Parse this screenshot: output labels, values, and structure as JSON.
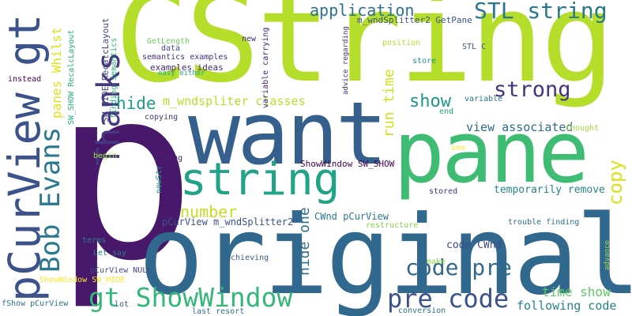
{
  "words": [
    {
      "text": "CString",
      "color": "#b5de2b"
    },
    {
      "text": "p",
      "color": "#48186a"
    },
    {
      "text": "original",
      "color": "#31688e"
    },
    {
      "text": "want",
      "color": "#35608d"
    },
    {
      "text": "pane",
      "color": "#3fbc73"
    },
    {
      "text": "string",
      "color": "#20a386"
    },
    {
      "text": "pCurView gt",
      "color": "#3b528b"
    },
    {
      "text": "Bob Evans",
      "color": "#2a788e"
    },
    {
      "text": "Thanks",
      "color": "#453781"
    },
    {
      "text": "gt ShowWindow",
      "color": "#35b779"
    },
    {
      "text": "pre code",
      "color": "#3b528b"
    },
    {
      "text": "code pre",
      "color": "#31688e"
    },
    {
      "text": "STL string",
      "color": "#2a788e"
    },
    {
      "text": "application",
      "color": "#2d708e"
    },
    {
      "text": "strong",
      "color": "#46337f"
    },
    {
      "text": "copy",
      "color": "#d8e219"
    },
    {
      "text": "show",
      "color": "#1f968b"
    },
    {
      "text": "hide",
      "color": "#1e9c89"
    },
    {
      "text": "number",
      "color": "#c2df23"
    },
    {
      "text": "m_wndspliter classes",
      "color": "#b8de29"
    },
    {
      "text": "run time",
      "color": "#d0e11c"
    },
    {
      "text": "hide one",
      "color": "#2e6f8e"
    },
    {
      "text": "time show",
      "color": "#5ec962"
    },
    {
      "text": "following code",
      "color": "#26828e"
    },
    {
      "text": "view associated",
      "color": "#31688e"
    },
    {
      "text": "temporarily remove",
      "color": "#25848e"
    },
    {
      "text": "panes Whilst",
      "color": "#dde318"
    },
    {
      "text": "pCurView m_wndSplitter2",
      "color": "#3b528b"
    },
    {
      "text": "m_wndSplitter2 GetPane",
      "color": "#3b528b"
    },
    {
      "text": "ShowWindow SW_SHOW",
      "color": "#440154"
    },
    {
      "text": "CWnd pCurView",
      "color": "#2a788e"
    },
    {
      "text": "code CWnd",
      "color": "#3e4a89"
    },
    {
      "text": "SW_SHOW RecalcLayout",
      "color": "#25ab82"
    },
    {
      "text": "SW_HIDE RecalcLayout",
      "color": "#3f4788"
    },
    {
      "text": "finding semantics",
      "color": "#2ab07f"
    },
    {
      "text": "semantics examples",
      "color": "#472d7b"
    },
    {
      "text": "examples ideas",
      "color": "#482878"
    },
    {
      "text": "GetLength",
      "color": "#6ece58"
    },
    {
      "text": "data",
      "color": "#3e4989"
    },
    {
      "text": "easy either",
      "color": "#22a884"
    },
    {
      "text": "variable carrying",
      "color": "#482173"
    },
    {
      "text": "advice regarding",
      "color": "#46327e"
    },
    {
      "text": "new",
      "color": "#482475"
    },
    {
      "text": "position",
      "color": "#b5de2b"
    },
    {
      "text": "store",
      "color": "#21918c"
    },
    {
      "text": "STL C",
      "color": "#39568c"
    },
    {
      "text": "variable",
      "color": "#2c728e"
    },
    {
      "text": "end",
      "color": "#1f9f88"
    },
    {
      "text": "thought",
      "color": "#9fda3a"
    },
    {
      "text": "copying",
      "color": "#443983"
    },
    {
      "text": "instead",
      "color": "#440154"
    },
    {
      "text": "begin",
      "color": "#a0da39"
    },
    {
      "text": "trying",
      "color": "#482576"
    },
    {
      "text": "newStr",
      "color": "#1f9e89"
    },
    {
      "text": "one",
      "color": "#fde725"
    },
    {
      "text": "stored",
      "color": "#472c7a"
    },
    {
      "text": "restructure",
      "color": "#84d44b"
    },
    {
      "text": "trouble finding",
      "color": "#2d708e"
    },
    {
      "text": "advance",
      "color": "#9bd93c"
    },
    {
      "text": "make",
      "color": "#8ed645"
    },
    {
      "text": "achieving",
      "color": "#38598c"
    },
    {
      "text": "terms",
      "color": "#26828e"
    },
    {
      "text": "Let say",
      "color": "#287d8e"
    },
    {
      "text": "pCurView NULL",
      "color": "#3e4a89"
    },
    {
      "text": "ShowWindow SW_HIDE",
      "color": "#fde725"
    },
    {
      "text": "fShow pCurView",
      "color": "#2c728e"
    },
    {
      "text": "lot",
      "color": "#3b528b"
    },
    {
      "text": "last resort",
      "color": "#2e6e8e"
    },
    {
      "text": "conversion",
      "color": "#2c718e"
    }
  ]
}
